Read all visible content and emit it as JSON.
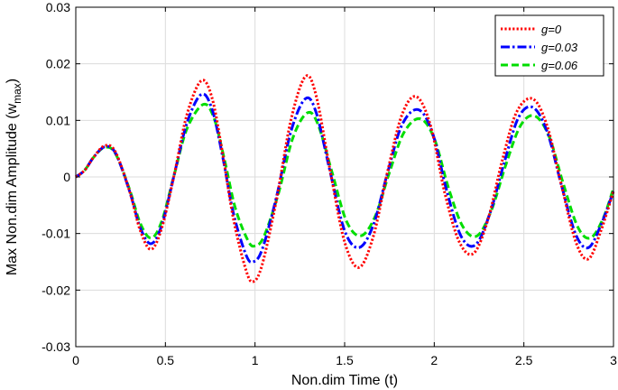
{
  "chart_data": {
    "type": "line",
    "xlabel": "Non.dim Time (t)",
    "ylabel": "Max Non.dim Amplitude (w",
    "ylabel_sub": "max",
    "ylabel_close": ")",
    "xlim": [
      0,
      3
    ],
    "ylim": [
      -0.03,
      0.03
    ],
    "grid": true,
    "legend_position": "top-right",
    "x_ticks": [
      0,
      0.5,
      1,
      1.5,
      2,
      2.5,
      3
    ],
    "x_tick_labels": [
      "0",
      "0.5",
      "1",
      "1.5",
      "2",
      "2.5",
      "3"
    ],
    "y_ticks": [
      -0.03,
      -0.02,
      -0.01,
      0,
      0.01,
      0.02,
      0.03
    ],
    "y_tick_labels": [
      "-0.03",
      "-0.02",
      "-0.01",
      "0",
      "0.01",
      "0.02",
      "0.03"
    ],
    "series": [
      {
        "name": "g=0",
        "color": "#ff0000",
        "dash": "dotted",
        "points": [
          [
            0,
            0
          ],
          [
            0.05,
            0.0012
          ],
          [
            0.1,
            0.0035
          ],
          [
            0.16,
            0.0055
          ],
          [
            0.22,
            0.0045
          ],
          [
            0.3,
            -0.0025
          ],
          [
            0.36,
            -0.0095
          ],
          [
            0.42,
            -0.0128
          ],
          [
            0.48,
            -0.009
          ],
          [
            0.55,
            0.0005
          ],
          [
            0.62,
            0.011
          ],
          [
            0.7,
            0.017
          ],
          [
            0.76,
            0.014
          ],
          [
            0.82,
            0.004
          ],
          [
            0.88,
            -0.0075
          ],
          [
            0.95,
            -0.0165
          ],
          [
            0.99,
            -0.0185
          ],
          [
            1.04,
            -0.0155
          ],
          [
            1.12,
            -0.004
          ],
          [
            1.2,
            0.01
          ],
          [
            1.28,
            0.0177
          ],
          [
            1.34,
            0.0145
          ],
          [
            1.42,
            0.001
          ],
          [
            1.5,
            -0.0115
          ],
          [
            1.58,
            -0.016
          ],
          [
            1.66,
            -0.0105
          ],
          [
            1.74,
            0.001
          ],
          [
            1.82,
            0.011
          ],
          [
            1.9,
            0.0142
          ],
          [
            1.98,
            0.009
          ],
          [
            2.06,
            -0.003
          ],
          [
            2.14,
            -0.0115
          ],
          [
            2.22,
            -0.0135
          ],
          [
            2.3,
            -0.0075
          ],
          [
            2.38,
            0.003
          ],
          [
            2.46,
            0.0115
          ],
          [
            2.55,
            0.0138
          ],
          [
            2.63,
            0.009
          ],
          [
            2.71,
            -0.0015
          ],
          [
            2.79,
            -0.0115
          ],
          [
            2.86,
            -0.0145
          ],
          [
            2.93,
            -0.0095
          ],
          [
            3,
            -0.0025
          ]
        ]
      },
      {
        "name": "g=0.03",
        "color": "#0000ff",
        "dash": "dashdot",
        "points": [
          [
            0,
            0
          ],
          [
            0.05,
            0.0012
          ],
          [
            0.1,
            0.0035
          ],
          [
            0.16,
            0.0053
          ],
          [
            0.22,
            0.0043
          ],
          [
            0.3,
            -0.0025
          ],
          [
            0.36,
            -0.009
          ],
          [
            0.42,
            -0.0118
          ],
          [
            0.48,
            -0.0085
          ],
          [
            0.55,
            0.0005
          ],
          [
            0.62,
            0.0095
          ],
          [
            0.7,
            0.0146
          ],
          [
            0.76,
            0.012
          ],
          [
            0.82,
            0.0035
          ],
          [
            0.88,
            -0.0065
          ],
          [
            0.95,
            -0.0138
          ],
          [
            0.99,
            -0.015
          ],
          [
            1.04,
            -0.0128
          ],
          [
            1.12,
            -0.0035
          ],
          [
            1.2,
            0.008
          ],
          [
            1.28,
            0.0138
          ],
          [
            1.34,
            0.0115
          ],
          [
            1.42,
            0.0008
          ],
          [
            1.5,
            -0.0095
          ],
          [
            1.58,
            -0.0125
          ],
          [
            1.66,
            -0.0085
          ],
          [
            1.74,
            0.0008
          ],
          [
            1.82,
            0.0092
          ],
          [
            1.91,
            0.0119
          ],
          [
            1.99,
            0.0078
          ],
          [
            2.07,
            -0.0025
          ],
          [
            2.15,
            -0.0105
          ],
          [
            2.23,
            -0.012
          ],
          [
            2.31,
            -0.0065
          ],
          [
            2.39,
            0.0025
          ],
          [
            2.47,
            0.0105
          ],
          [
            2.55,
            0.0123
          ],
          [
            2.63,
            0.008
          ],
          [
            2.71,
            -0.0015
          ],
          [
            2.79,
            -0.0102
          ],
          [
            2.86,
            -0.0125
          ],
          [
            2.93,
            -0.0085
          ],
          [
            3,
            -0.0025
          ]
        ]
      },
      {
        "name": "g=0.06",
        "color": "#00dd00",
        "dash": "dashed",
        "points": [
          [
            0,
            0
          ],
          [
            0.05,
            0.0012
          ],
          [
            0.1,
            0.0035
          ],
          [
            0.16,
            0.0052
          ],
          [
            0.22,
            0.0042
          ],
          [
            0.3,
            -0.0022
          ],
          [
            0.36,
            -0.0082
          ],
          [
            0.42,
            -0.0108
          ],
          [
            0.48,
            -0.0078
          ],
          [
            0.55,
            0.0005
          ],
          [
            0.62,
            0.0085
          ],
          [
            0.71,
            0.0128
          ],
          [
            0.77,
            0.0105
          ],
          [
            0.83,
            0.003
          ],
          [
            0.89,
            -0.0055
          ],
          [
            0.96,
            -0.0112
          ],
          [
            1.0,
            -0.0122
          ],
          [
            1.05,
            -0.0105
          ],
          [
            1.13,
            -0.003
          ],
          [
            1.21,
            0.0068
          ],
          [
            1.29,
            0.0113
          ],
          [
            1.35,
            0.0094
          ],
          [
            1.43,
            0.0008
          ],
          [
            1.51,
            -0.0078
          ],
          [
            1.59,
            -0.0104
          ],
          [
            1.67,
            -0.007
          ],
          [
            1.75,
            0.0008
          ],
          [
            1.83,
            0.0078
          ],
          [
            1.92,
            0.0103
          ],
          [
            2.0,
            0.0068
          ],
          [
            2.08,
            -0.002
          ],
          [
            2.16,
            -0.0088
          ],
          [
            2.24,
            -0.0104
          ],
          [
            2.32,
            -0.0058
          ],
          [
            2.4,
            0.0022
          ],
          [
            2.48,
            0.009
          ],
          [
            2.56,
            0.0108
          ],
          [
            2.64,
            0.0072
          ],
          [
            2.72,
            -0.0012
          ],
          [
            2.8,
            -0.0088
          ],
          [
            2.87,
            -0.0108
          ],
          [
            2.94,
            -0.0075
          ],
          [
            3,
            -0.002
          ]
        ]
      }
    ]
  }
}
